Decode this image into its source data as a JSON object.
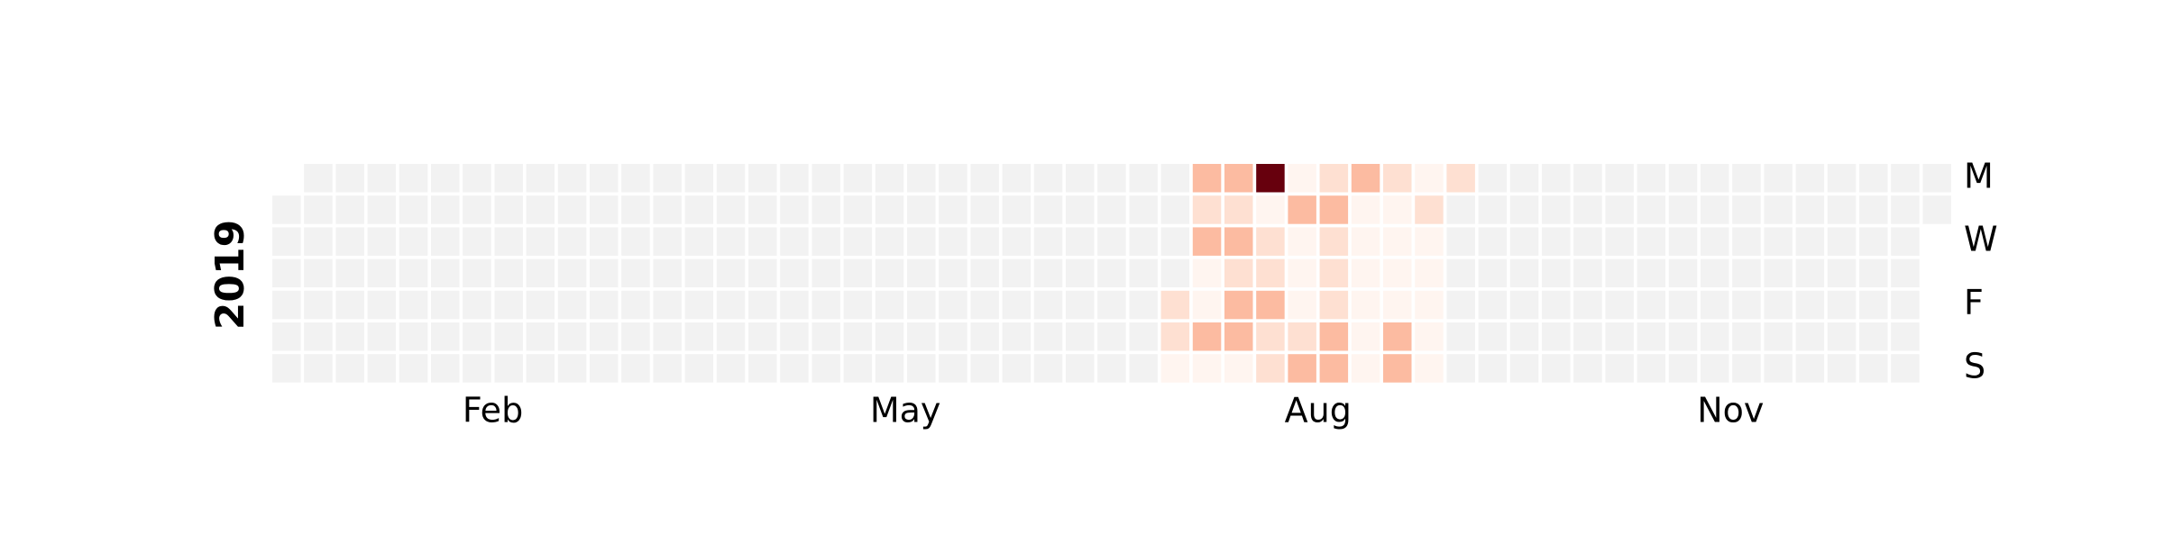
{
  "chart_data": {
    "type": "heatmap",
    "title": "",
    "year_label": "2019",
    "year": 2019,
    "weekday_labels": [
      {
        "day": "Mon",
        "label": "M"
      },
      {
        "day": "Wed",
        "label": "W"
      },
      {
        "day": "Fri",
        "label": "F"
      },
      {
        "day": "Sun",
        "label": "S"
      }
    ],
    "month_labels": [
      {
        "label": "Feb",
        "week": 6.5
      },
      {
        "label": "May",
        "week": 19.5
      },
      {
        "label": "Aug",
        "week": 32.5
      },
      {
        "label": "Nov",
        "week": 45.5
      }
    ],
    "rows": [
      "Mon",
      "Tue",
      "Wed",
      "Thu",
      "Fri",
      "Sat",
      "Sun"
    ],
    "weeks": 53,
    "first_week_empty_rows": [
      "Mon"
    ],
    "last_week_empty_rows": [
      "Wed",
      "Thu",
      "Fri",
      "Sat",
      "Sun"
    ],
    "colors": {
      "empty": "#f2f2f2",
      "scale": [
        "#fff5f0",
        "#fee0d2",
        "#fcbba1",
        "#fc9272",
        "#fb6a4a",
        "#67000d"
      ]
    },
    "max_value": 100,
    "active_cells": [
      {
        "week": 28,
        "day": "Fri",
        "value": 15
      },
      {
        "week": 28,
        "day": "Sat",
        "value": 15
      },
      {
        "week": 28,
        "day": "Sun",
        "value": 5
      },
      {
        "week": 29,
        "day": "Mon",
        "value": 30
      },
      {
        "week": 29,
        "day": "Tue",
        "value": 15
      },
      {
        "week": 29,
        "day": "Wed",
        "value": 30
      },
      {
        "week": 29,
        "day": "Thu",
        "value": 5
      },
      {
        "week": 29,
        "day": "Fri",
        "value": 5
      },
      {
        "week": 29,
        "day": "Sat",
        "value": 35
      },
      {
        "week": 29,
        "day": "Sun",
        "value": 5
      },
      {
        "week": 30,
        "day": "Mon",
        "value": 30
      },
      {
        "week": 30,
        "day": "Tue",
        "value": 15
      },
      {
        "week": 30,
        "day": "Wed",
        "value": 35
      },
      {
        "week": 30,
        "day": "Thu",
        "value": 20
      },
      {
        "week": 30,
        "day": "Fri",
        "value": 30
      },
      {
        "week": 30,
        "day": "Sat",
        "value": 30
      },
      {
        "week": 30,
        "day": "Sun",
        "value": 5
      },
      {
        "week": 31,
        "day": "Mon",
        "value": 100
      },
      {
        "week": 31,
        "day": "Tue",
        "value": 5
      },
      {
        "week": 31,
        "day": "Wed",
        "value": 25
      },
      {
        "week": 31,
        "day": "Thu",
        "value": 15
      },
      {
        "week": 31,
        "day": "Fri",
        "value": 30
      },
      {
        "week": 31,
        "day": "Sat",
        "value": 25
      },
      {
        "week": 31,
        "day": "Sun",
        "value": 15
      },
      {
        "week": 32,
        "day": "Mon",
        "value": 5
      },
      {
        "week": 32,
        "day": "Tue",
        "value": 40
      },
      {
        "week": 32,
        "day": "Wed",
        "value": 5
      },
      {
        "week": 32,
        "day": "Thu",
        "value": 5
      },
      {
        "week": 32,
        "day": "Fri",
        "value": 5
      },
      {
        "week": 32,
        "day": "Sat",
        "value": 15
      },
      {
        "week": 32,
        "day": "Sun",
        "value": 35
      },
      {
        "week": 33,
        "day": "Mon",
        "value": 15
      },
      {
        "week": 33,
        "day": "Tue",
        "value": 30
      },
      {
        "week": 33,
        "day": "Wed",
        "value": 15
      },
      {
        "week": 33,
        "day": "Thu",
        "value": 15
      },
      {
        "week": 33,
        "day": "Fri",
        "value": 20
      },
      {
        "week": 33,
        "day": "Sat",
        "value": 35
      },
      {
        "week": 33,
        "day": "Sun",
        "value": 30
      },
      {
        "week": 34,
        "day": "Mon",
        "value": 35
      },
      {
        "week": 34,
        "day": "Tue",
        "value": 5
      },
      {
        "week": 34,
        "day": "Wed",
        "value": 5
      },
      {
        "week": 34,
        "day": "Thu",
        "value": 5
      },
      {
        "week": 34,
        "day": "Fri",
        "value": 5
      },
      {
        "week": 34,
        "day": "Sat",
        "value": 5
      },
      {
        "week": 34,
        "day": "Sun",
        "value": 5
      },
      {
        "week": 35,
        "day": "Mon",
        "value": 15
      },
      {
        "week": 35,
        "day": "Tue",
        "value": 5
      },
      {
        "week": 35,
        "day": "Wed",
        "value": 5
      },
      {
        "week": 35,
        "day": "Thu",
        "value": 5
      },
      {
        "week": 35,
        "day": "Fri",
        "value": 5
      },
      {
        "week": 35,
        "day": "Sat",
        "value": 30
      },
      {
        "week": 35,
        "day": "Sun",
        "value": 35
      },
      {
        "week": 36,
        "day": "Mon",
        "value": 5
      },
      {
        "week": 36,
        "day": "Tue",
        "value": 20
      },
      {
        "week": 36,
        "day": "Wed",
        "value": 5
      },
      {
        "week": 36,
        "day": "Thu",
        "value": 5
      },
      {
        "week": 36,
        "day": "Fri",
        "value": 5
      },
      {
        "week": 36,
        "day": "Sat",
        "value": 5
      },
      {
        "week": 36,
        "day": "Sun",
        "value": 5
      },
      {
        "week": 37,
        "day": "Mon",
        "value": 10
      }
    ]
  }
}
